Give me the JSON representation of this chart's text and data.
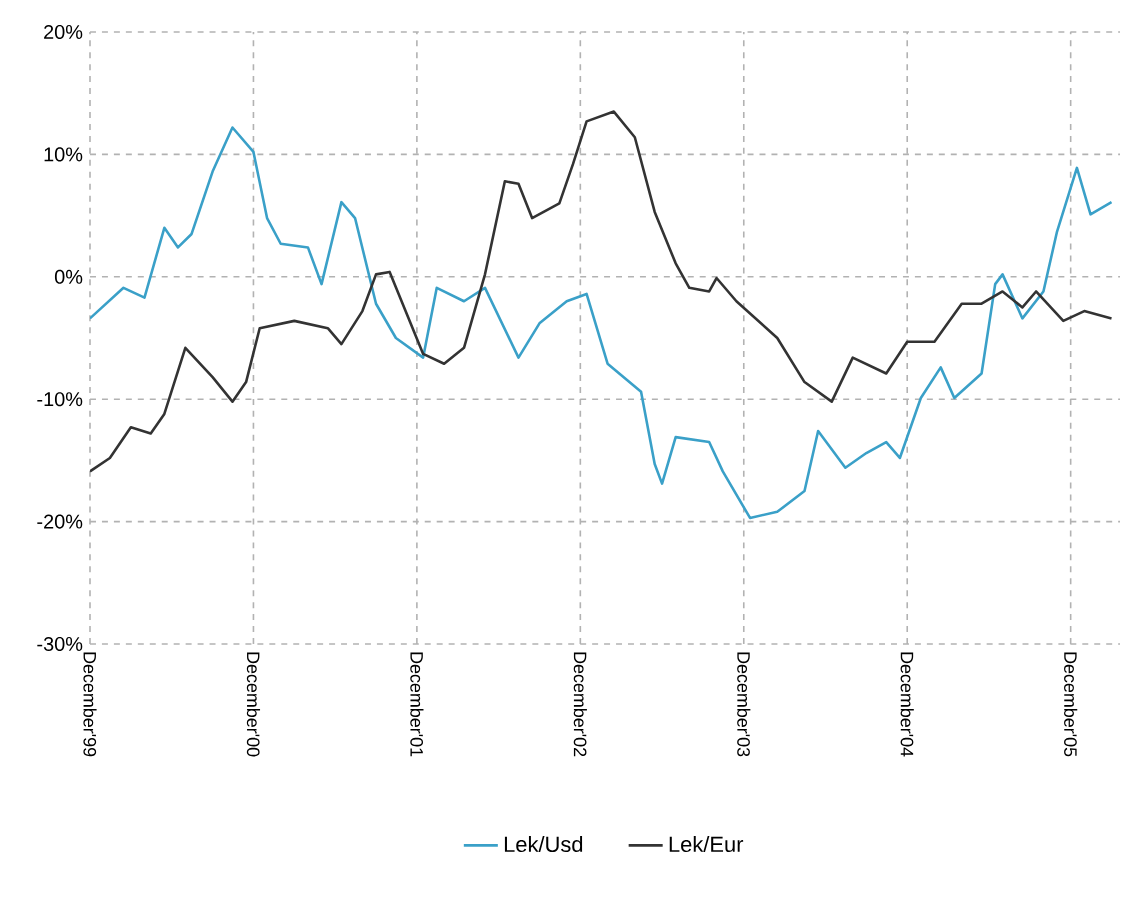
{
  "chart_data": {
    "type": "line",
    "xlim": [
      "1999-12-01",
      "2006-03-20"
    ],
    "xticks": [
      {
        "value": "1999-12-01",
        "label": "December'99"
      },
      {
        "value": "2000-12-01",
        "label": "December'00"
      },
      {
        "value": "2001-12-01",
        "label": "December'01"
      },
      {
        "value": "2002-12-01",
        "label": "December'02"
      },
      {
        "value": "2003-12-01",
        "label": "December'03"
      },
      {
        "value": "2004-12-01",
        "label": "December'04"
      },
      {
        "value": "2005-12-01",
        "label": "December'05"
      }
    ],
    "ylim": [
      -30,
      20
    ],
    "yticks": [
      {
        "value": -30,
        "label": "-30%"
      },
      {
        "value": -20,
        "label": "-20%"
      },
      {
        "value": -10,
        "label": "-10%"
      },
      {
        "value": 0,
        "label": "0%"
      },
      {
        "value": 10,
        "label": "10%"
      },
      {
        "value": 20,
        "label": "20%"
      }
    ],
    "grid": true,
    "legend": "bottom",
    "line_style": "solid",
    "series": [
      {
        "name": "Lek/Usd",
        "color": "#3aa0c8",
        "x": [
          "1999-12-01",
          "2000-02-15",
          "2000-04-01",
          "2000-05-15",
          "2000-06-15",
          "2000-07-15",
          "2000-09-01",
          "2000-10-15",
          "2000-12-01",
          "2001-01-01",
          "2001-02-01",
          "2001-04-01",
          "2001-05-01",
          "2001-06-15",
          "2001-07-15",
          "2001-09-01",
          "2001-10-15",
          "2001-12-15",
          "2002-01-15",
          "2002-03-15",
          "2002-05-01",
          "2002-07-15",
          "2002-09-01",
          "2002-11-01",
          "2002-12-15",
          "2003-02-01",
          "2003-04-15",
          "2003-05-15",
          "2003-06-01",
          "2003-07-01",
          "2003-09-15",
          "2003-10-15",
          "2003-12-15",
          "2004-02-15",
          "2004-04-15",
          "2004-05-15",
          "2004-07-15",
          "2004-09-01",
          "2004-10-15",
          "2004-11-15",
          "2005-01-01",
          "2005-02-15",
          "2005-03-15",
          "2005-05-15",
          "2005-06-15",
          "2005-07-01",
          "2005-08-15",
          "2005-10-01",
          "2005-11-01",
          "2005-12-15",
          "2006-01-15",
          "2006-03-01"
        ],
        "values": [
          -3.4,
          -0.9,
          -1.7,
          4.0,
          2.4,
          3.5,
          8.6,
          12.2,
          10.2,
          4.8,
          2.7,
          2.4,
          -0.6,
          6.1,
          4.8,
          -2.2,
          -5.0,
          -6.6,
          -0.9,
          -2.0,
          -0.9,
          -6.6,
          -3.8,
          -2.0,
          -1.4,
          -7.1,
          -9.4,
          -15.3,
          -16.9,
          -13.1,
          -13.5,
          -15.9,
          -19.7,
          -19.2,
          -17.5,
          -12.6,
          -15.6,
          -14.4,
          -13.5,
          -14.8,
          -9.9,
          -7.4,
          -9.9,
          -7.9,
          -0.6,
          0.2,
          -3.4,
          -1.2,
          3.7,
          8.9,
          5.1,
          6.1
        ]
      },
      {
        "name": "Lek/Eur",
        "color": "#333333",
        "x": [
          "1999-12-01",
          "2000-01-15",
          "2000-03-01",
          "2000-04-15",
          "2000-05-15",
          "2000-07-01",
          "2000-09-01",
          "2000-10-15",
          "2000-11-15",
          "2000-12-15",
          "2001-03-01",
          "2001-05-15",
          "2001-06-15",
          "2001-08-01",
          "2001-09-01",
          "2001-10-01",
          "2001-12-15",
          "2002-02-01",
          "2002-03-15",
          "2002-05-01",
          "2002-06-15",
          "2002-07-15",
          "2002-08-15",
          "2002-10-15",
          "2002-11-15",
          "2002-12-15",
          "2003-02-15",
          "2003-04-01",
          "2003-05-15",
          "2003-07-01",
          "2003-08-01",
          "2003-09-15",
          "2003-10-01",
          "2003-11-15",
          "2004-02-15",
          "2004-04-15",
          "2004-06-15",
          "2004-08-01",
          "2004-10-15",
          "2004-12-01",
          "2005-02-01",
          "2005-04-01",
          "2005-05-15",
          "2005-07-01",
          "2005-08-15",
          "2005-09-15",
          "2005-11-15",
          "2006-01-01",
          "2006-03-01"
        ],
        "values": [
          -15.9,
          -14.8,
          -12.3,
          -12.8,
          -11.2,
          -5.8,
          -8.2,
          -10.2,
          -8.6,
          -4.2,
          -3.6,
          -4.2,
          -5.5,
          -2.8,
          0.2,
          0.4,
          -6.3,
          -7.1,
          -5.8,
          0.2,
          7.8,
          7.6,
          4.8,
          6.0,
          9.2,
          12.7,
          13.5,
          11.4,
          5.3,
          1.1,
          -0.9,
          -1.2,
          -0.1,
          -2.0,
          -5.0,
          -8.6,
          -10.2,
          -6.6,
          -7.9,
          -5.3,
          -5.3,
          -2.2,
          -2.2,
          -1.2,
          -2.5,
          -1.2,
          -3.6,
          -2.8,
          -3.4
        ]
      }
    ]
  }
}
